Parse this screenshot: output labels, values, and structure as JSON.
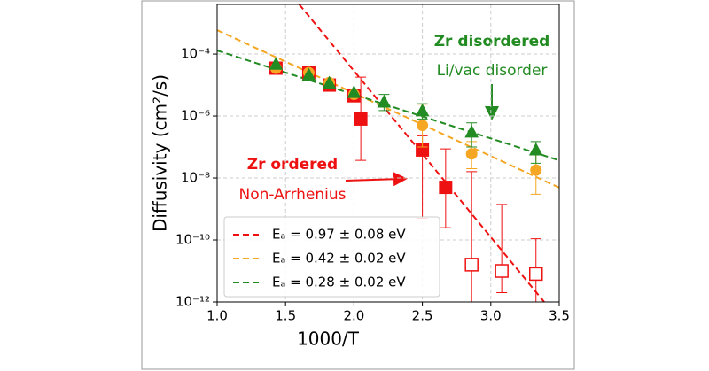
{
  "chart_data": {
    "type": "scatter",
    "xlabel": "1000/T",
    "ylabel": "Diffusivity (cm²/s)",
    "xlim": [
      1.0,
      3.5
    ],
    "xticks": [
      {
        "value": 1.0,
        "label": "1.0"
      },
      1.5,
      {
        "value": 2.0,
        "label": "2.0"
      },
      2.5,
      {
        "value": 3.0,
        "label": "3.0"
      },
      3.5
    ],
    "ylim": [
      1e-12,
      0.004
    ],
    "log_y": true,
    "grid": true,
    "yticks": [
      {
        "value": 1e-12,
        "label": "10⁻¹²"
      },
      {
        "value": 1e-10,
        "label": "10⁻¹⁰"
      },
      {
        "value": 1e-08,
        "label": "10⁻⁸"
      },
      {
        "value": 1e-06,
        "label": "10⁻⁶"
      },
      {
        "value": 0.0001,
        "label": "10⁻⁴"
      }
    ],
    "series": [
      {
        "marker": "square",
        "filled": true,
        "color": "#ee1111",
        "x": [
          1.43,
          1.67,
          1.82,
          2.0,
          2.05,
          2.5,
          2.67
        ],
        "values": [
          3.5e-05,
          2.5e-05,
          1e-05,
          4.5e-06,
          8e-07,
          8e-08,
          5e-09
        ],
        "err_low": [
          null,
          null,
          null,
          null,
          3.7e-08,
          5e-10,
          2.5e-10
        ],
        "err_high": [
          null,
          null,
          null,
          null,
          1.8e-05,
          2.3e-07,
          8.7e-08
        ]
      },
      {
        "marker": "square",
        "filled": false,
        "color": "#ee1111",
        "x": [
          2.86,
          3.08,
          3.33
        ],
        "values": [
          1.6e-11,
          1e-11,
          8e-12
        ],
        "err_low": [
          1e-12,
          2e-12,
          1e-12
        ],
        "err_high": [
          1.6e-08,
          1.4e-09,
          1.1e-10
        ]
      },
      {
        "marker": "circle",
        "filled": true,
        "color": "#f5a623",
        "x": [
          1.43,
          1.67,
          1.82,
          2.0,
          2.5,
          2.86,
          3.33
        ],
        "values": [
          3.5e-05,
          2.5e-05,
          1.2e-05,
          5e-06,
          5e-07,
          6e-08,
          1.8e-08
        ],
        "err_low": [
          null,
          null,
          null,
          null,
          1e-07,
          2e-08,
          3e-09
        ],
        "err_high": [
          null,
          null,
          null,
          null,
          2.4e-06,
          1.5e-07,
          6e-08
        ]
      },
      {
        "marker": "triangle",
        "filled": true,
        "color": "#228b22",
        "x": [
          1.43,
          1.67,
          1.82,
          2.0,
          2.22,
          2.5,
          2.86,
          3.33
        ],
        "values": [
          4.5e-05,
          2e-05,
          1.1e-05,
          5.5e-06,
          2.7e-06,
          1.4e-06,
          2.9e-07,
          7.7e-08
        ],
        "err_low": [
          null,
          null,
          null,
          null,
          1.5e-06,
          8e-07,
          1e-07,
          3e-08
        ],
        "err_high": [
          null,
          null,
          null,
          null,
          5e-06,
          2.5e-06,
          6e-07,
          1.5e-07
        ]
      }
    ],
    "fit_lines": [
      {
        "name": "Eₐ = 0.97 ± 0.08 eV",
        "color": "#ee1111",
        "x": [
          1.6,
          3.39
        ],
        "values": [
          0.004,
          1e-12
        ]
      },
      {
        "name": "Eₐ = 0.42 ± 0.02 eV",
        "color": "#f5a623",
        "x": [
          1.0,
          3.5
        ],
        "values": [
          0.00059,
          4.9e-09
        ]
      },
      {
        "name": "Eₐ = 0.28 ± 0.02 eV",
        "color": "#228b22",
        "x": [
          1.0,
          3.5
        ],
        "values": [
          0.00013,
          3.7e-08
        ]
      }
    ],
    "annotations": [
      "Zr disordered",
      "Li/vac disorder",
      "Zr ordered",
      "Non-Arrhenius"
    ]
  }
}
